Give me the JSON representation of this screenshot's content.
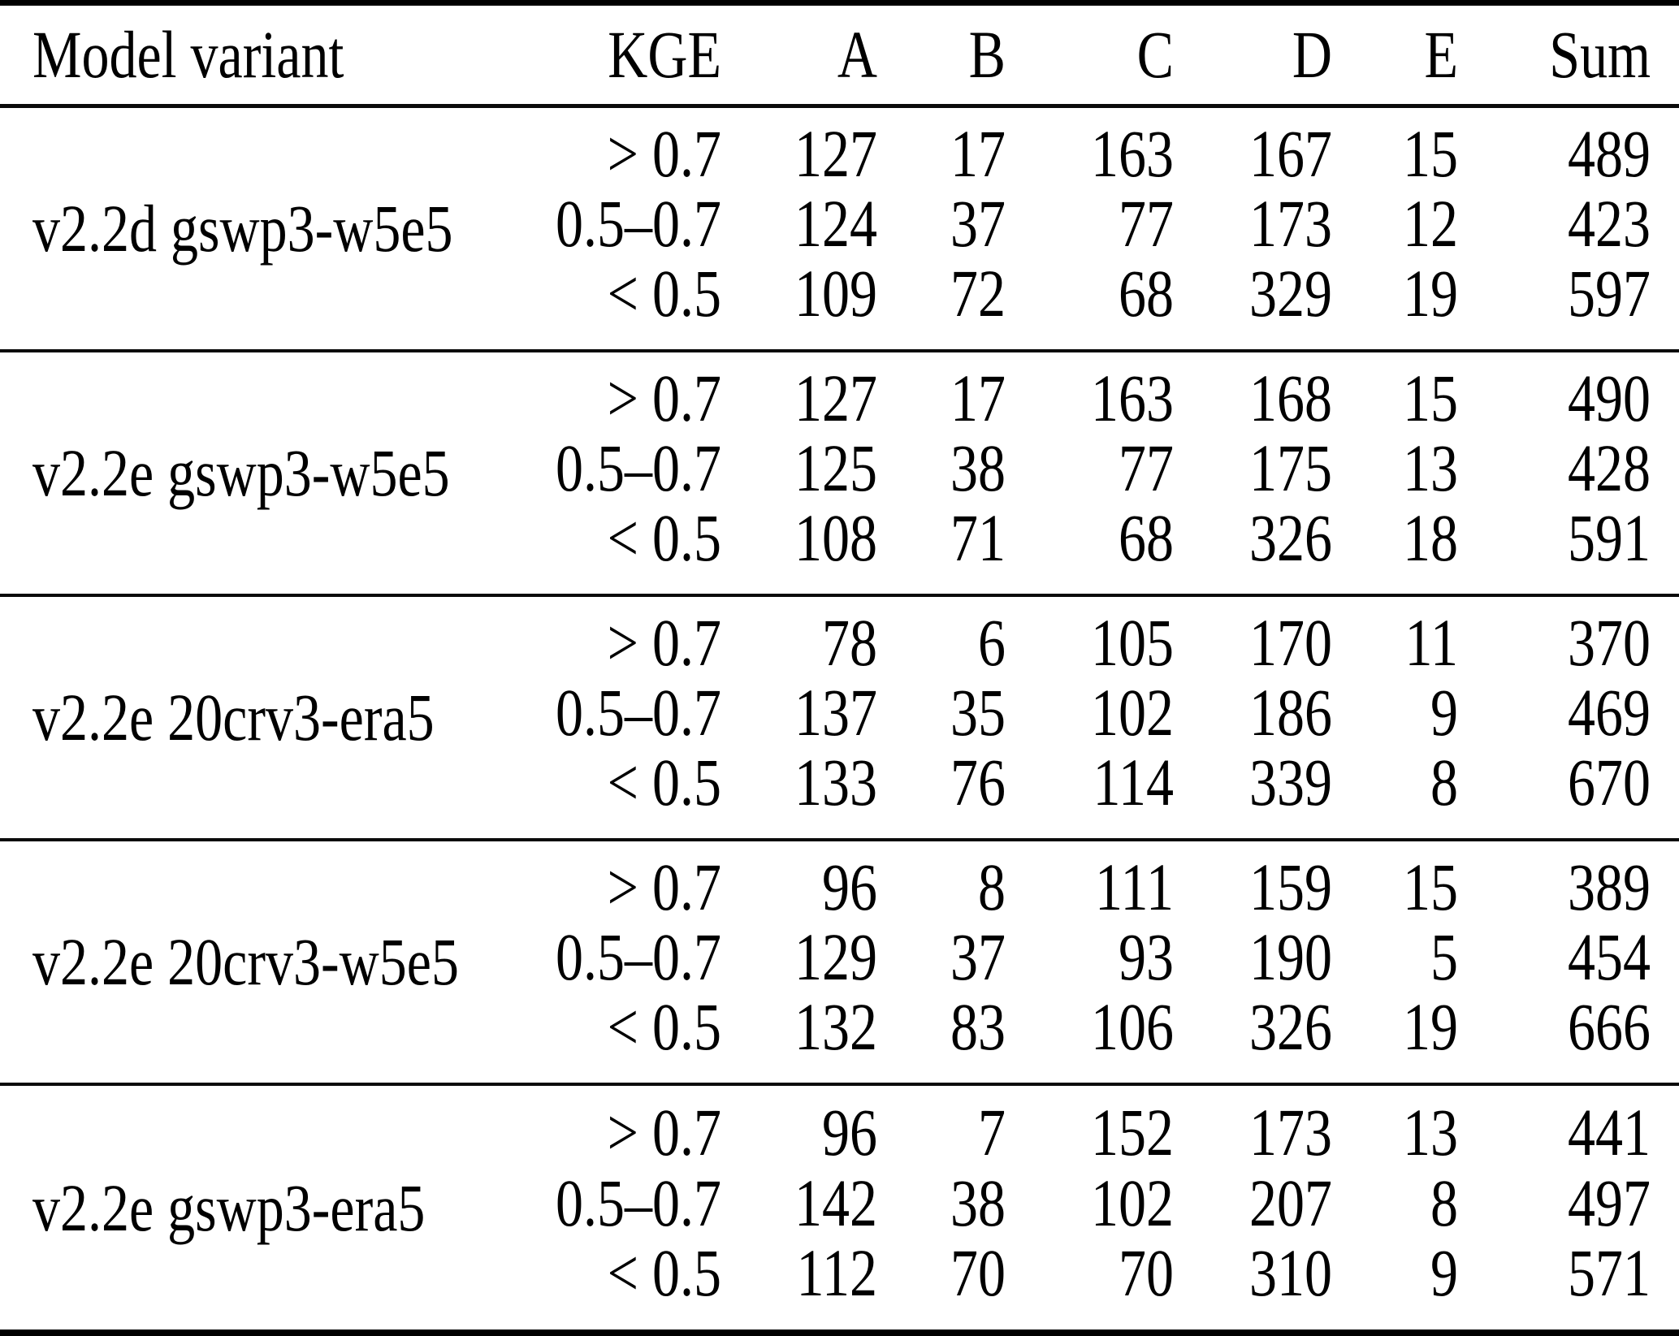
{
  "table": {
    "columns": [
      "Model variant",
      "KGE",
      "A",
      "B",
      "C",
      "D",
      "E",
      "Sum"
    ],
    "groups": [
      {
        "model": "v2.2d gswp3-w5e5",
        "rows": [
          {
            "kge": "> 0.7",
            "values": [
              127,
              17,
              163,
              167,
              15
            ],
            "sum": 489
          },
          {
            "kge": "0.5–0.7",
            "values": [
              124,
              37,
              77,
              173,
              12
            ],
            "sum": 423
          },
          {
            "kge": "< 0.5",
            "values": [
              109,
              72,
              68,
              329,
              19
            ],
            "sum": 597
          }
        ]
      },
      {
        "model": "v2.2e gswp3-w5e5",
        "rows": [
          {
            "kge": "> 0.7",
            "values": [
              127,
              17,
              163,
              168,
              15
            ],
            "sum": 490
          },
          {
            "kge": "0.5–0.7",
            "values": [
              125,
              38,
              77,
              175,
              13
            ],
            "sum": 428
          },
          {
            "kge": "< 0.5",
            "values": [
              108,
              71,
              68,
              326,
              18
            ],
            "sum": 591
          }
        ]
      },
      {
        "model": "v2.2e 20crv3-era5",
        "rows": [
          {
            "kge": "> 0.7",
            "values": [
              78,
              6,
              105,
              170,
              11
            ],
            "sum": 370
          },
          {
            "kge": "0.5–0.7",
            "values": [
              137,
              35,
              102,
              186,
              9
            ],
            "sum": 469
          },
          {
            "kge": "< 0.5",
            "values": [
              133,
              76,
              114,
              339,
              8
            ],
            "sum": 670
          }
        ]
      },
      {
        "model": "v2.2e 20crv3-w5e5",
        "rows": [
          {
            "kge": "> 0.7",
            "values": [
              96,
              8,
              111,
              159,
              15
            ],
            "sum": 389
          },
          {
            "kge": "0.5–0.7",
            "values": [
              129,
              37,
              93,
              190,
              5
            ],
            "sum": 454
          },
          {
            "kge": "< 0.5",
            "values": [
              132,
              83,
              106,
              326,
              19
            ],
            "sum": 666
          }
        ]
      },
      {
        "model": "v2.2e gswp3-era5",
        "rows": [
          {
            "kge": "> 0.7",
            "values": [
              96,
              7,
              152,
              173,
              13
            ],
            "sum": 441
          },
          {
            "kge": "0.5–0.7",
            "values": [
              142,
              38,
              102,
              207,
              8
            ],
            "sum": 497
          },
          {
            "kge": "< 0.5",
            "values": [
              112,
              70,
              70,
              310,
              9
            ],
            "sum": 571
          }
        ]
      }
    ]
  }
}
